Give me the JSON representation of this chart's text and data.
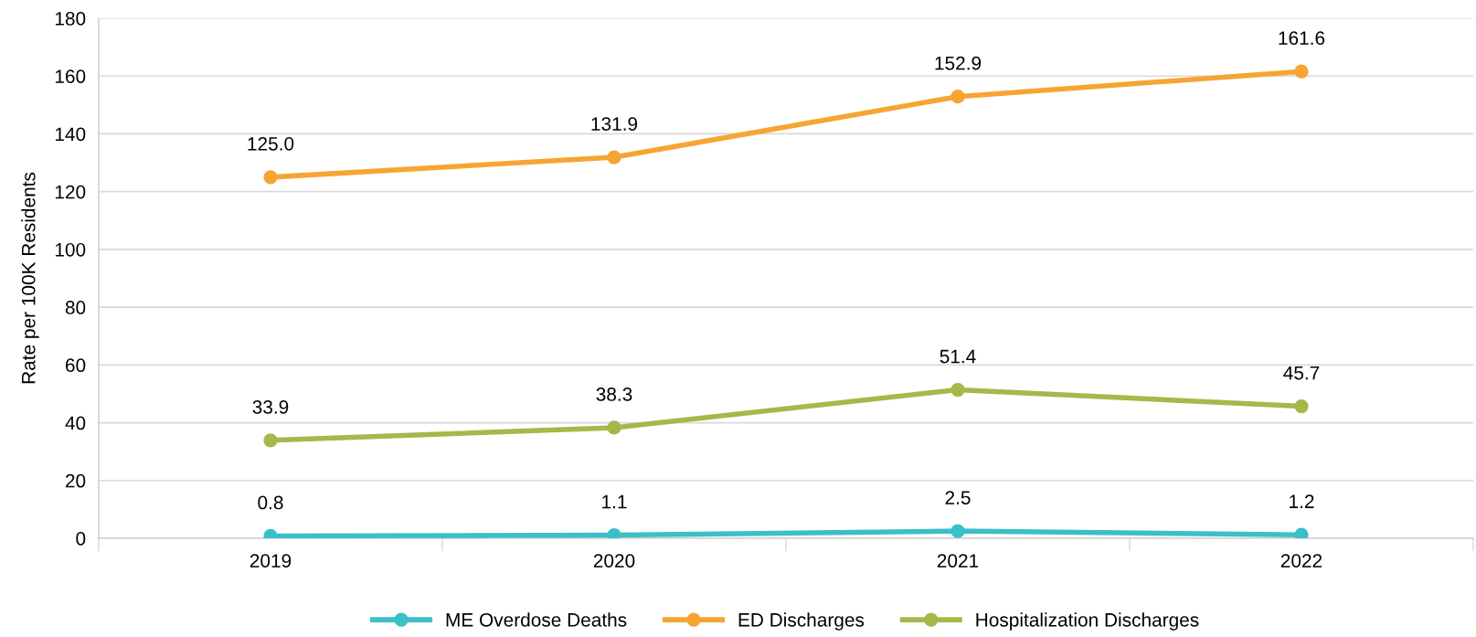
{
  "chart_data": {
    "type": "line",
    "ylabel": "Rate per 100K Residents",
    "categories": [
      "2019",
      "2020",
      "2021",
      "2022"
    ],
    "series": [
      {
        "name": "ME Overdose Deaths",
        "color": "#3bbfc8",
        "values": [
          0.8,
          1.1,
          2.5,
          1.2
        ],
        "value_labels": [
          "0.8",
          "1.1",
          "2.5",
          "1.2"
        ]
      },
      {
        "name": "ED Discharges",
        "color": "#f6a533",
        "values": [
          125.0,
          131.9,
          152.9,
          161.6
        ],
        "value_labels": [
          "125.0",
          "131.9",
          "152.9",
          "161.6"
        ]
      },
      {
        "name": "Hospitalization Discharges",
        "color": "#a3b94a",
        "values": [
          33.9,
          38.3,
          51.4,
          45.7
        ],
        "value_labels": [
          "33.9",
          "38.3",
          "51.4",
          "45.7"
        ]
      }
    ],
    "ylim": [
      0,
      180
    ],
    "yticks": [
      0,
      20,
      40,
      60,
      80,
      100,
      120,
      140,
      160,
      180
    ],
    "grid": "y",
    "legend": "bottom",
    "marker": "circle",
    "line_style": "solid"
  }
}
